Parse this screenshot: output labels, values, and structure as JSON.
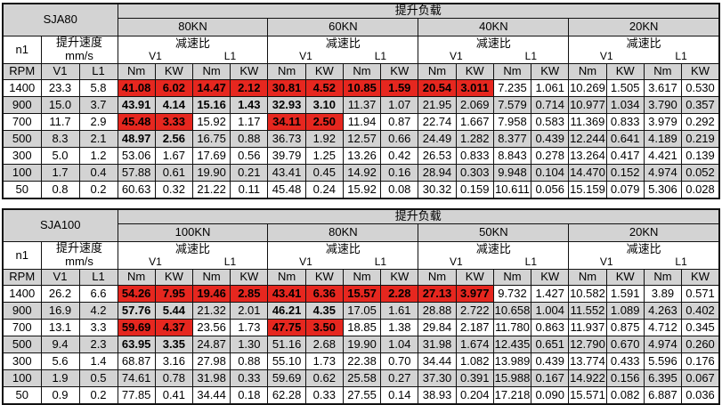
{
  "colors": {
    "gray": "#d3d3d3",
    "red": "#e6271f",
    "border": "#111111",
    "red_text": "#ffffff"
  },
  "page": {
    "tables": [
      {
        "model": "SJA80",
        "load_title": "提升负载",
        "loads": [
          "80KN",
          "60KN",
          "40KN",
          "20KN"
        ],
        "labels": {
          "n1": "n1",
          "speed": "提升速度",
          "speed_unit": "mm/s",
          "reduction": "减速比",
          "rpm": "RPM",
          "v1": "V1",
          "l1": "L1",
          "nm": "Nm",
          "kw": "KW"
        },
        "rows": [
          {
            "rpm": "1400",
            "v1": "23.3",
            "l1": "5.8",
            "values": [
              "41.08",
              "6.02",
              "14.47",
              "2.12",
              "30.81",
              "4.52",
              "10.85",
              "1.59",
              "20.54",
              "3.011",
              "7.235",
              "1.061",
              "10.269",
              "1.505",
              "3.617",
              "0.530"
            ],
            "red": [
              0,
              1,
              2,
              3,
              4,
              5,
              6,
              7,
              8,
              9
            ]
          },
          {
            "rpm": "900",
            "v1": "15.0",
            "l1": "3.7",
            "values": [
              "43.91",
              "4.14",
              "15.16",
              "1.43",
              "32.93",
              "3.10",
              "11.37",
              "1.07",
              "21.95",
              "2.069",
              "7.579",
              "0.714",
              "10.977",
              "1.034",
              "3.790",
              "0.357"
            ],
            "red": [
              0,
              1,
              2,
              3,
              4,
              5
            ]
          },
          {
            "rpm": "700",
            "v1": "11.7",
            "l1": "2.9",
            "values": [
              "45.48",
              "3.33",
              "15.92",
              "1.17",
              "34.11",
              "2.50",
              "11.94",
              "0.87",
              "22.74",
              "1.667",
              "7.958",
              "0.583",
              "11.369",
              "0.833",
              "3.979",
              "0.292"
            ],
            "red": [
              0,
              1,
              4,
              5
            ]
          },
          {
            "rpm": "500",
            "v1": "8.3",
            "l1": "2.1",
            "values": [
              "48.97",
              "2.56",
              "16.75",
              "0.88",
              "36.73",
              "1.92",
              "12.57",
              "0.66",
              "24.49",
              "1.282",
              "8.377",
              "0.439",
              "12.244",
              "0.641",
              "4.189",
              "0.219"
            ],
            "red": [
              0,
              1
            ]
          },
          {
            "rpm": "300",
            "v1": "5.0",
            "l1": "1.2",
            "values": [
              "53.06",
              "1.67",
              "17.69",
              "0.56",
              "39.79",
              "1.25",
              "13.26",
              "0.42",
              "26.53",
              "0.833",
              "8.843",
              "0.278",
              "13.264",
              "0.417",
              "4.421",
              "0.139"
            ],
            "red": []
          },
          {
            "rpm": "100",
            "v1": "1.7",
            "l1": "0.4",
            "values": [
              "57.88",
              "0.61",
              "19.90",
              "0.21",
              "43.41",
              "0.45",
              "14.92",
              "0.16",
              "28.94",
              "0.303",
              "9.948",
              "0.104",
              "14.470",
              "0.152",
              "4.974",
              "0.052"
            ],
            "red": []
          },
          {
            "rpm": "50",
            "v1": "0.8",
            "l1": "0.2",
            "values": [
              "60.63",
              "0.32",
              "21.22",
              "0.11",
              "45.48",
              "0.24",
              "15.92",
              "0.08",
              "30.32",
              "0.159",
              "10.611",
              "0.056",
              "15.159",
              "0.079",
              "5.306",
              "0.028"
            ],
            "red": []
          }
        ]
      },
      {
        "model": "SJA100",
        "load_title": "提升负载",
        "loads": [
          "100KN",
          "80KN",
          "50KN",
          "20KN"
        ],
        "labels": {
          "n1": "n1",
          "speed": "提升速度",
          "speed_unit": "mm/s",
          "reduction": "减速比",
          "rpm": "RPM",
          "v1": "V1",
          "l1": "L1",
          "nm": "Nm",
          "kw": "KW"
        },
        "rows": [
          {
            "rpm": "1400",
            "v1": "26.2",
            "l1": "6.6",
            "values": [
              "54.26",
              "7.95",
              "19.46",
              "2.85",
              "43.41",
              "6.36",
              "15.57",
              "2.28",
              "27.13",
              "3.977",
              "9.732",
              "1.427",
              "10.582",
              "1.591",
              "3.89",
              "0.571"
            ],
            "red": [
              0,
              1,
              2,
              3,
              4,
              5,
              6,
              7,
              8,
              9
            ]
          },
          {
            "rpm": "900",
            "v1": "16.9",
            "l1": "4.2",
            "values": [
              "57.76",
              "5.44",
              "21.32",
              "2.01",
              "46.21",
              "4.35",
              "17.05",
              "1.61",
              "28.88",
              "2.722",
              "10.658",
              "1.004",
              "11.552",
              "1.089",
              "4.263",
              "0.402"
            ],
            "red": [
              0,
              1,
              4,
              5
            ]
          },
          {
            "rpm": "700",
            "v1": "13.1",
            "l1": "3.3",
            "values": [
              "59.69",
              "4.37",
              "23.56",
              "1.73",
              "47.75",
              "3.50",
              "18.85",
              "1.38",
              "29.84",
              "2.187",
              "11.780",
              "0.863",
              "11.937",
              "0.875",
              "4.712",
              "0.345"
            ],
            "red": [
              0,
              1,
              4,
              5
            ]
          },
          {
            "rpm": "500",
            "v1": "9.4",
            "l1": "2.3",
            "values": [
              "63.95",
              "3.35",
              "24.87",
              "1.30",
              "51.16",
              "2.68",
              "19.90",
              "1.04",
              "31.98",
              "1.674",
              "12.435",
              "0.651",
              "12.790",
              "0.670",
              "4.974",
              "0.260"
            ],
            "red": [
              0,
              1
            ]
          },
          {
            "rpm": "300",
            "v1": "5.6",
            "l1": "1.4",
            "values": [
              "68.87",
              "3.16",
              "27.98",
              "0.88",
              "55.10",
              "1.73",
              "22.38",
              "0.70",
              "34.44",
              "1.082",
              "13.989",
              "0.439",
              "13.774",
              "0.433",
              "5.596",
              "0.176"
            ],
            "red": []
          },
          {
            "rpm": "100",
            "v1": "1.9",
            "l1": "0.5",
            "values": [
              "74.61",
              "0.78",
              "31.98",
              "0.33",
              "59.69",
              "0.62",
              "25.58",
              "0.27",
              "37.30",
              "0.391",
              "15.988",
              "0.167",
              "14.922",
              "0.156",
              "6.395",
              "0.067"
            ],
            "red": []
          },
          {
            "rpm": "50",
            "v1": "0.9",
            "l1": "0.2",
            "values": [
              "77.85",
              "0.41",
              "34.44",
              "0.18",
              "62.28",
              "0.33",
              "27.55",
              "0.14",
              "38.93",
              "0.204",
              "17.218",
              "0.090",
              "15.571",
              "0.082",
              "6.887",
              "0.036"
            ],
            "red": []
          }
        ]
      }
    ]
  }
}
